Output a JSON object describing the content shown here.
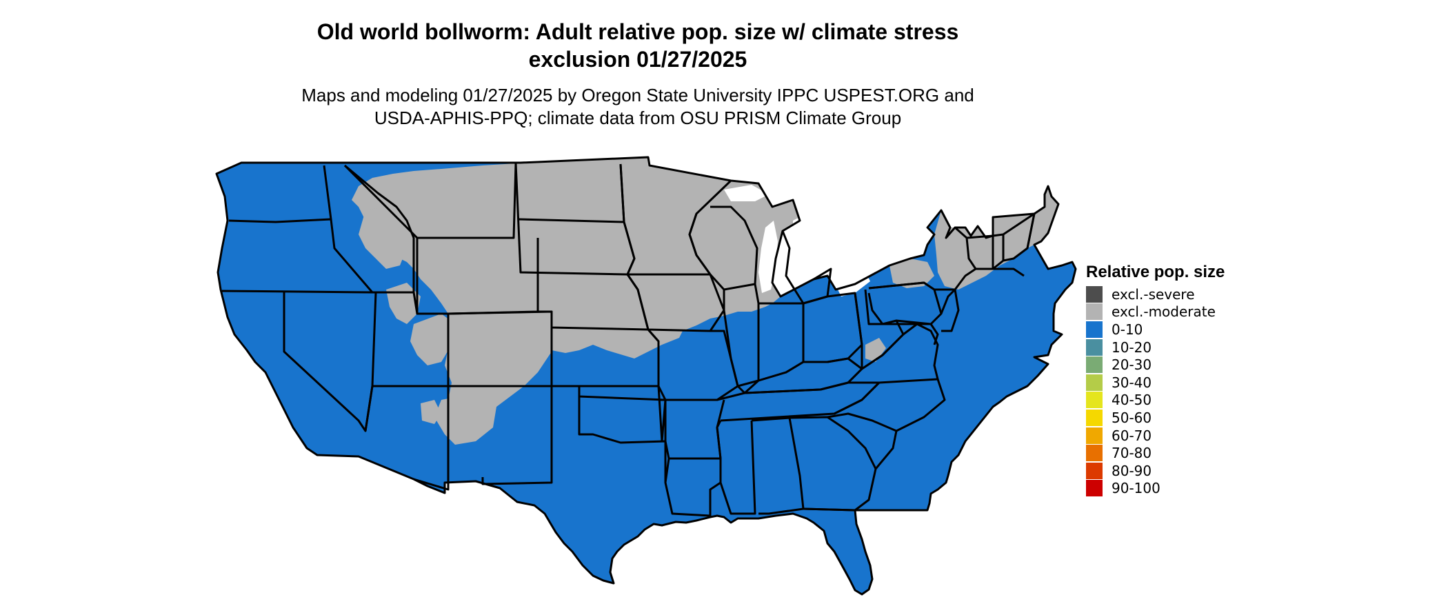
{
  "title": {
    "line1": "Old world bollworm: Adult relative pop. size w/ climate stress",
    "line2": "exclusion 01/27/2025"
  },
  "subtitle": {
    "line1": "Maps and modeling 01/27/2025 by Oregon State University IPPC USPEST.ORG and",
    "line2": "USDA-APHIS-PPQ; climate data from OSU PRISM Climate Group"
  },
  "legend": {
    "title": "Relative pop. size",
    "items": [
      {
        "label": "excl.-severe",
        "color": "#4d4d4d"
      },
      {
        "label": "excl.-moderate",
        "color": "#b3b3b3"
      },
      {
        "label": "0-10",
        "color": "#1874cd"
      },
      {
        "label": "10-20",
        "color": "#4a8fa0"
      },
      {
        "label": "20-30",
        "color": "#7aab74"
      },
      {
        "label": "30-40",
        "color": "#b4cc48"
      },
      {
        "label": "40-50",
        "color": "#e5e51d"
      },
      {
        "label": "50-60",
        "color": "#f5d800"
      },
      {
        "label": "60-70",
        "color": "#f0a800"
      },
      {
        "label": "70-80",
        "color": "#e87000"
      },
      {
        "label": "80-90",
        "color": "#dc3a00"
      },
      {
        "label": "90-100",
        "color": "#cd0000"
      }
    ]
  },
  "map": {
    "colors": {
      "land": "#1874cd",
      "excluded_moderate": "#b3b3b3",
      "border": "#000000"
    }
  }
}
